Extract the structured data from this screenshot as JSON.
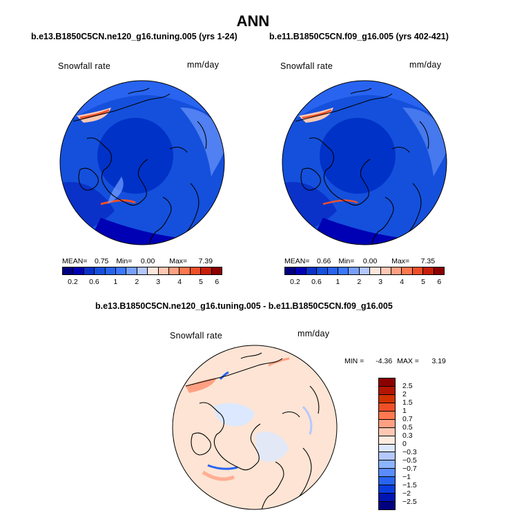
{
  "title": "ANN",
  "panels": [
    {
      "subtitle": "b.e13.B1850C5CN.ne120_g16.tuning.005 (yrs 1-24)",
      "variable_label": "Snowfall rate",
      "units_label": "mm/day",
      "stats": {
        "mean_label": "MEAN=",
        "mean": "0.75",
        "min_label": "Min=",
        "min": "0.00",
        "max_label": "Max=",
        "max": "7.39"
      }
    },
    {
      "subtitle": "b.e11.B1850C5CN.f09_g16.005 (yrs 402-421)",
      "variable_label": "Snowfall rate",
      "units_label": "mm/day",
      "stats": {
        "mean_label": "MEAN=",
        "mean": "0.66",
        "min_label": "Min=",
        "min": "0.00",
        "max_label": "Max=",
        "max": "7.35"
      }
    }
  ],
  "diff_panel": {
    "subtitle": "b.e13.B1850C5CN.ne120_g16.tuning.005 - b.e11.B1850C5CN.f09_g16.005",
    "variable_label": "Snowfall rate",
    "units_label": "mm/day",
    "min_label": "MIN =",
    "min": "-4.36",
    "max_label": "MAX =",
    "max": "3.19"
  },
  "colorbar_horizontal": {
    "colors": [
      "#000080",
      "#0000b4",
      "#0a32c8",
      "#1450dc",
      "#2864f0",
      "#3c78ff",
      "#78a0ff",
      "#b4c8ff",
      "#ffe6dc",
      "#ffc8b4",
      "#ffa082",
      "#ff7850",
      "#f05028",
      "#c81e0a",
      "#8c0000"
    ],
    "tick_labels": [
      "0.2",
      "0.6",
      "1",
      "2",
      "3",
      "4",
      "5",
      "6"
    ]
  },
  "colorbar_vertical": {
    "colors": [
      "#8c0000",
      "#b41400",
      "#d23200",
      "#f05028",
      "#ff7850",
      "#ffa082",
      "#ffc8b4",
      "#ffebe0",
      "#dce8ff",
      "#b4c8ff",
      "#8cb4ff",
      "#5a8cff",
      "#2864f0",
      "#0a3cdc",
      "#0014b4",
      "#000080"
    ],
    "tick_labels": [
      "2.5",
      "2",
      "1.5",
      "1",
      "0.7",
      "0.5",
      "0.3",
      "0",
      "−0.3",
      "−0.5",
      "−0.7",
      "−1",
      "−1.5",
      "−2",
      "−2.5"
    ]
  },
  "map_colors": {
    "ocean_deep": "#0032c8",
    "ocean_mid": "#1450dc",
    "high_snow": "#3c78ff",
    "light_snow": "#78a0ff",
    "peak": "#f05028",
    "peak_light": "#ffc8b4",
    "diff_base": "#fde4d4",
    "diff_pos": "#f05028",
    "diff_neg": "#2864f0",
    "diff_neg_light": "#b4c8ff"
  }
}
